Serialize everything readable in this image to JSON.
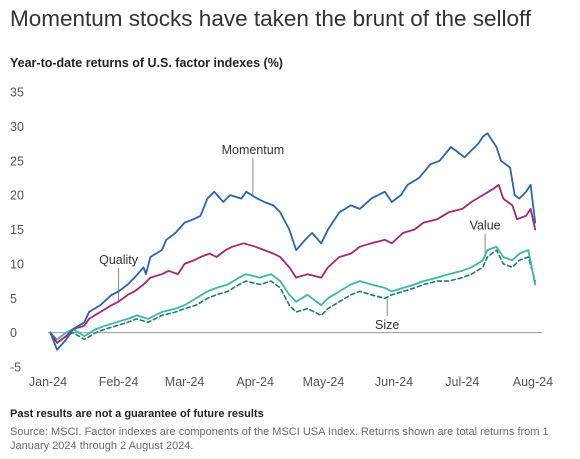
{
  "title": "Momentum stocks have taken the brunt of the selloff",
  "subtitle": "Year-to-date returns of U.S. factor indexes (%)",
  "footnote": "Past results are not a guarantee of future results",
  "source": "Source: MSCI. Factor indexes are components of the MSCI USA Index. Returns shown are total returns from 1 January 2024 through 2 August 2024.",
  "colors": {
    "momentum": "#2f63ad",
    "quality": "#a3286f",
    "value": "#3fb5a3",
    "size": "#1f7a66",
    "axis": "#999999",
    "leader": "#888888"
  },
  "chart_data": {
    "type": "line",
    "title": "Momentum stocks have taken the brunt of the selloff",
    "ylabel": "Year-to-date returns of U.S. factor indexes (%)",
    "xlabel": "",
    "ylim": [
      -5,
      35
    ],
    "yticks": [
      35,
      30,
      25,
      20,
      15,
      10,
      5,
      0,
      -5
    ],
    "xlim": [
      "2024-01-01",
      "2024-08-05"
    ],
    "x_ticks": [
      {
        "date": "2024-01-01",
        "label": "Jan-24"
      },
      {
        "date": "2024-02-01",
        "label": "Feb-24"
      },
      {
        "date": "2024-03-01",
        "label": "Mar-24"
      },
      {
        "date": "2024-04-01",
        "label": "Apr-24"
      },
      {
        "date": "2024-05-01",
        "label": "May-24"
      },
      {
        "date": "2024-06-01",
        "label": "Jun-24"
      },
      {
        "date": "2024-07-01",
        "label": "Jul-24"
      },
      {
        "date": "2024-08-01",
        "label": "Aug-24"
      }
    ],
    "grid": false,
    "legend": "inline labels",
    "series": [
      {
        "name": "Momentum",
        "key": "momentum",
        "dashed": false,
        "points": [
          [
            "2024-01-02",
            0.0
          ],
          [
            "2024-01-05",
            -2.5
          ],
          [
            "2024-01-09",
            -1.0
          ],
          [
            "2024-01-12",
            0.5
          ],
          [
            "2024-01-17",
            1.5
          ],
          [
            "2024-01-19",
            3.0
          ],
          [
            "2024-01-24",
            4.0
          ],
          [
            "2024-01-29",
            5.5
          ],
          [
            "2024-02-01",
            6.0
          ],
          [
            "2024-02-05",
            7.0
          ],
          [
            "2024-02-08",
            8.0
          ],
          [
            "2024-02-12",
            9.5
          ],
          [
            "2024-02-13",
            8.5
          ],
          [
            "2024-02-15",
            11.0
          ],
          [
            "2024-02-20",
            12.0
          ],
          [
            "2024-02-22",
            13.5
          ],
          [
            "2024-02-26",
            14.5
          ],
          [
            "2024-03-01",
            16.0
          ],
          [
            "2024-03-05",
            16.5
          ],
          [
            "2024-03-08",
            17.0
          ],
          [
            "2024-03-11",
            19.5
          ],
          [
            "2024-03-14",
            20.5
          ],
          [
            "2024-03-18",
            19.0
          ],
          [
            "2024-03-21",
            20.0
          ],
          [
            "2024-03-26",
            19.5
          ],
          [
            "2024-03-28",
            20.5
          ],
          [
            "2024-04-02",
            19.5
          ],
          [
            "2024-04-05",
            19.0
          ],
          [
            "2024-04-09",
            18.5
          ],
          [
            "2024-04-12",
            17.5
          ],
          [
            "2024-04-16",
            15.0
          ],
          [
            "2024-04-19",
            12.0
          ],
          [
            "2024-04-23",
            13.5
          ],
          [
            "2024-04-26",
            14.5
          ],
          [
            "2024-04-30",
            13.0
          ],
          [
            "2024-05-03",
            15.0
          ],
          [
            "2024-05-08",
            17.5
          ],
          [
            "2024-05-13",
            18.5
          ],
          [
            "2024-05-17",
            18.0
          ],
          [
            "2024-05-22",
            19.5
          ],
          [
            "2024-05-28",
            20.5
          ],
          [
            "2024-05-31",
            19.0
          ],
          [
            "2024-06-04",
            20.0
          ],
          [
            "2024-06-07",
            21.5
          ],
          [
            "2024-06-12",
            22.5
          ],
          [
            "2024-06-17",
            24.5
          ],
          [
            "2024-06-21",
            25.0
          ],
          [
            "2024-06-26",
            27.0
          ],
          [
            "2024-06-28",
            26.5
          ],
          [
            "2024-07-02",
            25.5
          ],
          [
            "2024-07-05",
            26.5
          ],
          [
            "2024-07-08",
            27.5
          ],
          [
            "2024-07-10",
            28.5
          ],
          [
            "2024-07-12",
            29.0
          ],
          [
            "2024-07-16",
            27.0
          ],
          [
            "2024-07-18",
            25.0
          ],
          [
            "2024-07-22",
            24.0
          ],
          [
            "2024-07-24",
            20.0
          ],
          [
            "2024-07-26",
            19.5
          ],
          [
            "2024-07-29",
            20.5
          ],
          [
            "2024-07-31",
            21.5
          ],
          [
            "2024-08-02",
            16.0
          ]
        ]
      },
      {
        "name": "Quality",
        "key": "quality",
        "dashed": false,
        "points": [
          [
            "2024-01-02",
            0.0
          ],
          [
            "2024-01-05",
            -1.5
          ],
          [
            "2024-01-09",
            -0.5
          ],
          [
            "2024-01-12",
            0.5
          ],
          [
            "2024-01-17",
            1.0
          ],
          [
            "2024-01-19",
            2.0
          ],
          [
            "2024-01-24",
            3.0
          ],
          [
            "2024-01-29",
            4.0
          ],
          [
            "2024-02-01",
            4.5
          ],
          [
            "2024-02-05",
            5.5
          ],
          [
            "2024-02-08",
            6.0
          ],
          [
            "2024-02-12",
            7.0
          ],
          [
            "2024-02-15",
            8.0
          ],
          [
            "2024-02-20",
            8.5
          ],
          [
            "2024-02-23",
            9.0
          ],
          [
            "2024-02-27",
            8.5
          ],
          [
            "2024-03-01",
            10.0
          ],
          [
            "2024-03-05",
            10.5
          ],
          [
            "2024-03-08",
            11.0
          ],
          [
            "2024-03-12",
            11.5
          ],
          [
            "2024-03-15",
            11.0
          ],
          [
            "2024-03-19",
            12.0
          ],
          [
            "2024-03-22",
            12.5
          ],
          [
            "2024-03-27",
            13.0
          ],
          [
            "2024-04-01",
            12.5
          ],
          [
            "2024-04-05",
            12.0
          ],
          [
            "2024-04-09",
            11.5
          ],
          [
            "2024-04-12",
            11.0
          ],
          [
            "2024-04-16",
            9.5
          ],
          [
            "2024-04-19",
            8.0
          ],
          [
            "2024-04-24",
            8.5
          ],
          [
            "2024-04-30",
            8.0
          ],
          [
            "2024-05-03",
            9.5
          ],
          [
            "2024-05-08",
            11.0
          ],
          [
            "2024-05-13",
            11.5
          ],
          [
            "2024-05-17",
            12.5
          ],
          [
            "2024-05-22",
            13.0
          ],
          [
            "2024-05-28",
            13.5
          ],
          [
            "2024-05-31",
            13.0
          ],
          [
            "2024-06-05",
            14.5
          ],
          [
            "2024-06-10",
            15.0
          ],
          [
            "2024-06-14",
            16.0
          ],
          [
            "2024-06-20",
            16.5
          ],
          [
            "2024-06-25",
            17.5
          ],
          [
            "2024-07-01",
            18.0
          ],
          [
            "2024-07-05",
            19.0
          ],
          [
            "2024-07-10",
            20.0
          ],
          [
            "2024-07-15",
            21.0
          ],
          [
            "2024-07-17",
            21.5
          ],
          [
            "2024-07-19",
            19.5
          ],
          [
            "2024-07-23",
            18.5
          ],
          [
            "2024-07-25",
            16.5
          ],
          [
            "2024-07-29",
            17.0
          ],
          [
            "2024-07-31",
            18.0
          ],
          [
            "2024-08-02",
            15.0
          ]
        ]
      },
      {
        "name": "Value",
        "key": "value",
        "dashed": false,
        "points": [
          [
            "2024-01-02",
            0.0
          ],
          [
            "2024-01-05",
            -1.0
          ],
          [
            "2024-01-09",
            0.0
          ],
          [
            "2024-01-12",
            0.5
          ],
          [
            "2024-01-17",
            -0.5
          ],
          [
            "2024-01-22",
            0.5
          ],
          [
            "2024-01-26",
            1.0
          ],
          [
            "2024-01-31",
            1.5
          ],
          [
            "2024-02-05",
            2.0
          ],
          [
            "2024-02-09",
            2.5
          ],
          [
            "2024-02-14",
            2.0
          ],
          [
            "2024-02-20",
            3.0
          ],
          [
            "2024-02-26",
            3.5
          ],
          [
            "2024-03-01",
            4.0
          ],
          [
            "2024-03-06",
            5.0
          ],
          [
            "2024-03-11",
            6.0
          ],
          [
            "2024-03-15",
            6.5
          ],
          [
            "2024-03-20",
            7.0
          ],
          [
            "2024-03-25",
            8.0
          ],
          [
            "2024-03-28",
            8.5
          ],
          [
            "2024-04-03",
            8.0
          ],
          [
            "2024-04-08",
            8.5
          ],
          [
            "2024-04-12",
            7.5
          ],
          [
            "2024-04-16",
            5.5
          ],
          [
            "2024-04-19",
            4.5
          ],
          [
            "2024-04-24",
            5.5
          ],
          [
            "2024-04-30",
            4.0
          ],
          [
            "2024-05-03",
            5.0
          ],
          [
            "2024-05-08",
            6.0
          ],
          [
            "2024-05-13",
            7.0
          ],
          [
            "2024-05-17",
            7.5
          ],
          [
            "2024-05-22",
            7.0
          ],
          [
            "2024-05-28",
            6.5
          ],
          [
            "2024-05-31",
            6.0
          ],
          [
            "2024-06-05",
            6.5
          ],
          [
            "2024-06-10",
            7.0
          ],
          [
            "2024-06-14",
            7.5
          ],
          [
            "2024-06-20",
            8.0
          ],
          [
            "2024-06-25",
            8.5
          ],
          [
            "2024-07-01",
            9.0
          ],
          [
            "2024-07-05",
            9.5
          ],
          [
            "2024-07-10",
            10.5
          ],
          [
            "2024-07-12",
            12.0
          ],
          [
            "2024-07-16",
            12.5
          ],
          [
            "2024-07-19",
            11.0
          ],
          [
            "2024-07-23",
            10.5
          ],
          [
            "2024-07-26",
            11.5
          ],
          [
            "2024-07-30",
            12.0
          ],
          [
            "2024-08-02",
            7.0
          ]
        ]
      },
      {
        "name": "Size",
        "key": "size",
        "dashed": true,
        "points": [
          [
            "2024-01-02",
            0.0
          ],
          [
            "2024-01-05",
            -1.5
          ],
          [
            "2024-01-09",
            -0.5
          ],
          [
            "2024-01-12",
            0.0
          ],
          [
            "2024-01-17",
            -1.0
          ],
          [
            "2024-01-22",
            0.0
          ],
          [
            "2024-01-26",
            0.5
          ],
          [
            "2024-01-31",
            1.0
          ],
          [
            "2024-02-05",
            1.5
          ],
          [
            "2024-02-09",
            2.0
          ],
          [
            "2024-02-14",
            1.5
          ],
          [
            "2024-02-20",
            2.5
          ],
          [
            "2024-02-26",
            3.0
          ],
          [
            "2024-03-01",
            3.5
          ],
          [
            "2024-03-06",
            4.0
          ],
          [
            "2024-03-11",
            5.0
          ],
          [
            "2024-03-15",
            5.5
          ],
          [
            "2024-03-20",
            6.0
          ],
          [
            "2024-03-25",
            7.0
          ],
          [
            "2024-03-28",
            7.5
          ],
          [
            "2024-04-03",
            7.0
          ],
          [
            "2024-04-08",
            7.5
          ],
          [
            "2024-04-12",
            6.5
          ],
          [
            "2024-04-16",
            4.0
          ],
          [
            "2024-04-19",
            3.0
          ],
          [
            "2024-04-24",
            3.5
          ],
          [
            "2024-04-30",
            2.5
          ],
          [
            "2024-05-03",
            3.5
          ],
          [
            "2024-05-08",
            4.5
          ],
          [
            "2024-05-13",
            5.5
          ],
          [
            "2024-05-17",
            6.0
          ],
          [
            "2024-05-22",
            5.5
          ],
          [
            "2024-05-28",
            5.0
          ],
          [
            "2024-05-31",
            5.5
          ],
          [
            "2024-06-05",
            6.0
          ],
          [
            "2024-06-10",
            6.5
          ],
          [
            "2024-06-14",
            7.0
          ],
          [
            "2024-06-20",
            7.5
          ],
          [
            "2024-06-25",
            7.5
          ],
          [
            "2024-07-01",
            8.0
          ],
          [
            "2024-07-05",
            8.5
          ],
          [
            "2024-07-10",
            9.5
          ],
          [
            "2024-07-12",
            11.0
          ],
          [
            "2024-07-16",
            12.0
          ],
          [
            "2024-07-19",
            10.0
          ],
          [
            "2024-07-23",
            9.5
          ],
          [
            "2024-07-26",
            10.5
          ],
          [
            "2024-07-30",
            11.0
          ],
          [
            "2024-08-02",
            7.5
          ]
        ]
      }
    ],
    "annotations": [
      {
        "text": "Momentum",
        "series": "momentum",
        "date": "2024-03-31",
        "y": 20.0,
        "label_y": 26.0
      },
      {
        "text": "Quality",
        "series": "quality",
        "date": "2024-02-01",
        "y": 4.5,
        "label_y": 10.0
      },
      {
        "text": "Value",
        "series": "value",
        "date": "2024-07-11",
        "y": 11.0,
        "label_y": 15.0
      },
      {
        "text": "Size",
        "series": "size",
        "date": "2024-05-29",
        "y": 5.0,
        "label_y": 0.5
      }
    ]
  }
}
